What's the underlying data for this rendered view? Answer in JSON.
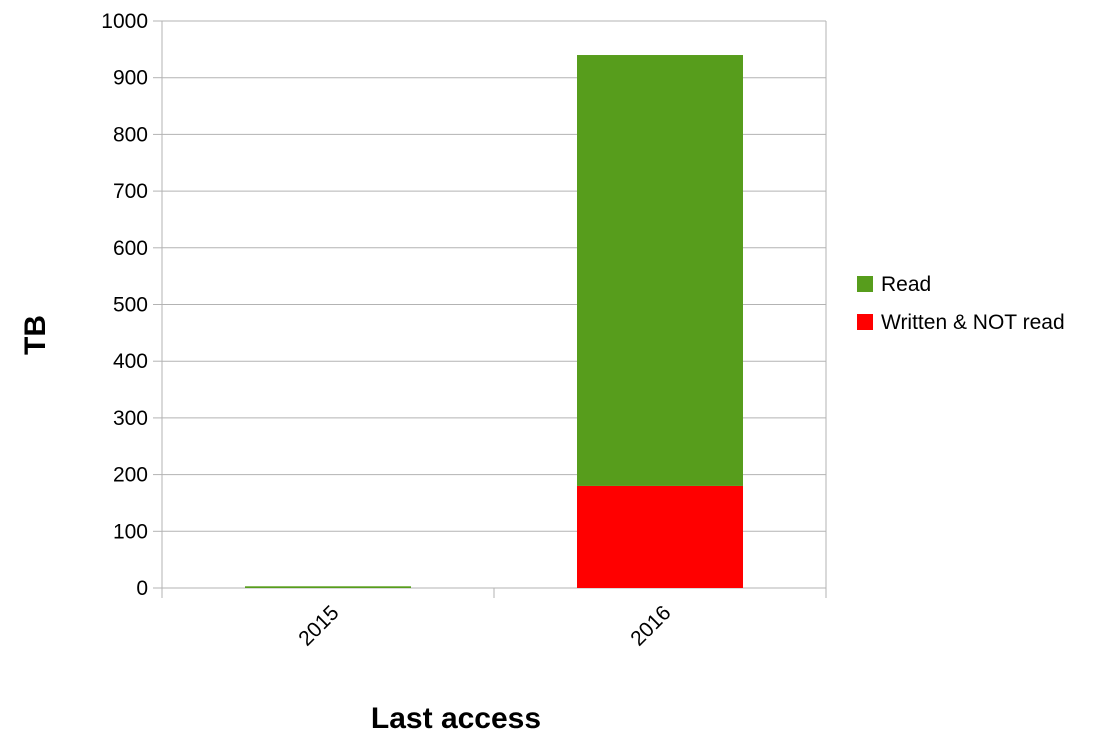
{
  "chart_data": {
    "type": "bar",
    "stacked": true,
    "title": "",
    "xlabel": "Last access",
    "ylabel": "TB",
    "categories": [
      "2015",
      "2016"
    ],
    "ylim": [
      0,
      1000
    ],
    "yticks": [
      0,
      100,
      200,
      300,
      400,
      500,
      600,
      700,
      800,
      900,
      1000
    ],
    "grid": true,
    "legend_position": "right",
    "series": [
      {
        "name": "Written & NOT read",
        "color": "#ff0000",
        "values": [
          0,
          180
        ]
      },
      {
        "name": "Read",
        "color": "#579d1c",
        "values": [
          3,
          760
        ]
      }
    ],
    "legend_order": [
      "Read",
      "Written & NOT read"
    ]
  }
}
